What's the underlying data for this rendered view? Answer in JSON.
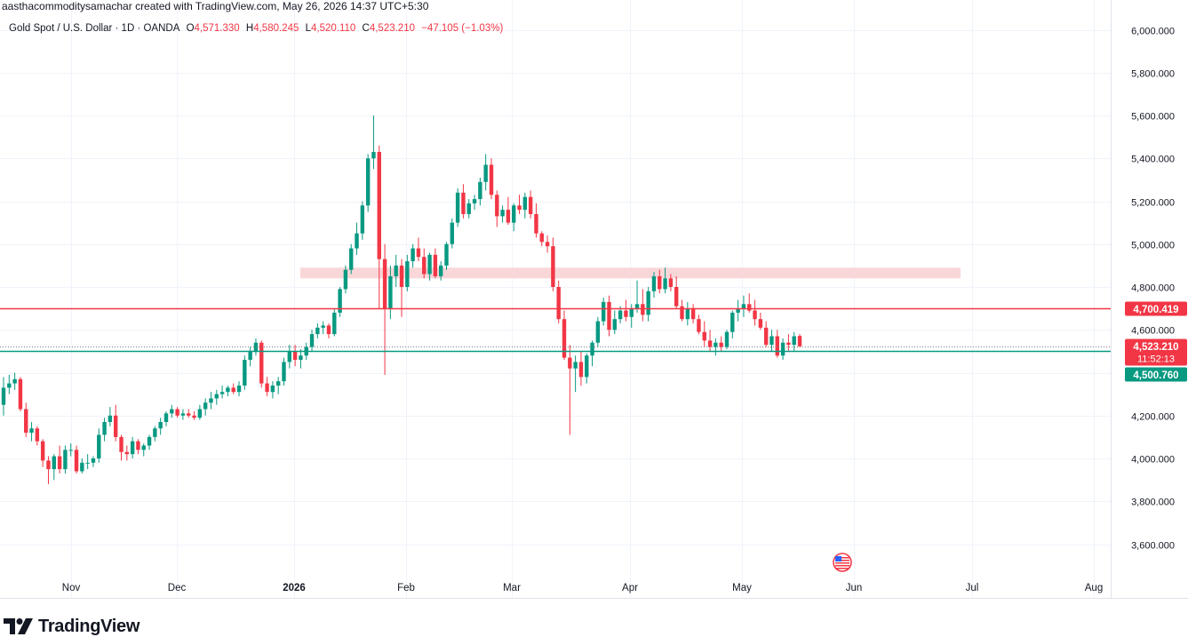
{
  "header": {
    "created_by": "aasthacommoditysamachar created with TradingView.com, May 26, 2026 14:37 UTC+5:30"
  },
  "legend": {
    "symbol": "Gold Spot / U.S. Dollar · 1D · OANDA",
    "open_label": "O",
    "open": "4,571.330",
    "high_label": "H",
    "high": "4,580.245",
    "low_label": "L",
    "low": "4,520.110",
    "close_label": "C",
    "close": "4,523.210",
    "change": "−47.105 (−1.03%)"
  },
  "chart_data": {
    "type": "candlestick",
    "y_ticks": [
      "6,000.000",
      "5,800.000",
      "5,600.000",
      "5,400.000",
      "5,200.000",
      "5,000.000",
      "4,800.000",
      "4,600.000",
      "4,400.000",
      "4,200.000",
      "4,000.000",
      "3,800.000",
      "3,600.000"
    ],
    "x_ticks": [
      "Nov",
      "Dec",
      "2026",
      "Feb",
      "Mar",
      "Apr",
      "May",
      "Jun",
      "Jul",
      "Aug"
    ],
    "ylim": [
      3500,
      6050
    ],
    "grid": true,
    "candles": [
      [
        4250,
        4380,
        4200,
        4330
      ],
      [
        4330,
        4390,
        4300,
        4350
      ],
      [
        4350,
        4400,
        4320,
        4370
      ],
      [
        4370,
        4380,
        4220,
        4230
      ],
      [
        4230,
        4260,
        4100,
        4120
      ],
      [
        4120,
        4170,
        4080,
        4140
      ],
      [
        4140,
        4150,
        4060,
        4080
      ],
      [
        4080,
        4090,
        3960,
        3990
      ],
      [
        3990,
        4010,
        3880,
        3950
      ],
      [
        3950,
        4020,
        3900,
        4010
      ],
      [
        4010,
        4060,
        3930,
        3950
      ],
      [
        3950,
        4060,
        3930,
        4040
      ],
      [
        4040,
        4070,
        4010,
        4040
      ],
      [
        4040,
        4060,
        3930,
        3940
      ],
      [
        3940,
        4000,
        3930,
        3980
      ],
      [
        3980,
        4020,
        3950,
        3980
      ],
      [
        3980,
        4010,
        3960,
        4000
      ],
      [
        4000,
        4140,
        3980,
        4110
      ],
      [
        4110,
        4190,
        4080,
        4170
      ],
      [
        4170,
        4240,
        4150,
        4200
      ],
      [
        4200,
        4250,
        4080,
        4100
      ],
      [
        4100,
        4110,
        3990,
        4030
      ],
      [
        4030,
        4060,
        3990,
        4020
      ],
      [
        4020,
        4100,
        4000,
        4080
      ],
      [
        4080,
        4090,
        4020,
        4040
      ],
      [
        4040,
        4070,
        4010,
        4060
      ],
      [
        4060,
        4110,
        4040,
        4100
      ],
      [
        4100,
        4150,
        4080,
        4140
      ],
      [
        4140,
        4190,
        4110,
        4170
      ],
      [
        4170,
        4220,
        4150,
        4210
      ],
      [
        4210,
        4250,
        4190,
        4230
      ],
      [
        4230,
        4240,
        4190,
        4200
      ],
      [
        4200,
        4230,
        4180,
        4210
      ],
      [
        4210,
        4230,
        4190,
        4200
      ],
      [
        4200,
        4220,
        4180,
        4190
      ],
      [
        4190,
        4250,
        4180,
        4230
      ],
      [
        4230,
        4280,
        4200,
        4260
      ],
      [
        4260,
        4310,
        4230,
        4280
      ],
      [
        4280,
        4320,
        4250,
        4300
      ],
      [
        4300,
        4340,
        4280,
        4310
      ],
      [
        4310,
        4340,
        4290,
        4330
      ],
      [
        4330,
        4350,
        4300,
        4310
      ],
      [
        4310,
        4360,
        4290,
        4340
      ],
      [
        4340,
        4480,
        4320,
        4460
      ],
      [
        4460,
        4520,
        4430,
        4500
      ],
      [
        4500,
        4560,
        4480,
        4540
      ],
      [
        4540,
        4550,
        4330,
        4350
      ],
      [
        4350,
        4380,
        4290,
        4310
      ],
      [
        4310,
        4360,
        4280,
        4340
      ],
      [
        4340,
        4380,
        4300,
        4360
      ],
      [
        4360,
        4470,
        4340,
        4450
      ],
      [
        4450,
        4530,
        4420,
        4500
      ],
      [
        4500,
        4530,
        4430,
        4460
      ],
      [
        4460,
        4510,
        4420,
        4480
      ],
      [
        4480,
        4540,
        4460,
        4520
      ],
      [
        4520,
        4600,
        4500,
        4580
      ],
      [
        4580,
        4630,
        4560,
        4610
      ],
      [
        4610,
        4640,
        4580,
        4620
      ],
      [
        4620,
        4630,
        4560,
        4580
      ],
      [
        4580,
        4700,
        4570,
        4680
      ],
      [
        4680,
        4800,
        4660,
        4790
      ],
      [
        4790,
        4900,
        4770,
        4880
      ],
      [
        4880,
        5000,
        4860,
        4980
      ],
      [
        4980,
        5100,
        4950,
        5050
      ],
      [
        5050,
        5200,
        5020,
        5180
      ],
      [
        5180,
        5420,
        5150,
        5400
      ],
      [
        5400,
        5600,
        5350,
        5430
      ],
      [
        5430,
        5460,
        4700,
        4930
      ],
      [
        4930,
        5000,
        4390,
        4700
      ],
      [
        4700,
        4900,
        4650,
        4850
      ],
      [
        4850,
        4950,
        4800,
        4900
      ],
      [
        4900,
        4930,
        4660,
        4800
      ],
      [
        4800,
        4950,
        4780,
        4920
      ],
      [
        4920,
        5000,
        4890,
        4980
      ],
      [
        4980,
        5030,
        4920,
        4940
      ],
      [
        4940,
        4980,
        4840,
        4860
      ],
      [
        4860,
        4960,
        4830,
        4950
      ],
      [
        4950,
        4980,
        4840,
        4850
      ],
      [
        4850,
        4920,
        4830,
        4900
      ],
      [
        4900,
        5010,
        4880,
        5000
      ],
      [
        5000,
        5120,
        4980,
        5100
      ],
      [
        5100,
        5260,
        5080,
        5240
      ],
      [
        5240,
        5280,
        5120,
        5140
      ],
      [
        5140,
        5210,
        5120,
        5190
      ],
      [
        5190,
        5230,
        5160,
        5210
      ],
      [
        5210,
        5310,
        5180,
        5290
      ],
      [
        5290,
        5420,
        5250,
        5370
      ],
      [
        5370,
        5400,
        5210,
        5230
      ],
      [
        5230,
        5250,
        5080,
        5130
      ],
      [
        5130,
        5180,
        5100,
        5160
      ],
      [
        5160,
        5220,
        5090,
        5100
      ],
      [
        5100,
        5190,
        5060,
        5180
      ],
      [
        5180,
        5230,
        5140,
        5160
      ],
      [
        5160,
        5240,
        5120,
        5220
      ],
      [
        5220,
        5250,
        5120,
        5140
      ],
      [
        5140,
        5190,
        5030,
        5050
      ],
      [
        5050,
        5060,
        4990,
        5010
      ],
      [
        5010,
        5040,
        4960,
        4990
      ],
      [
        4990,
        5030,
        4780,
        4800
      ],
      [
        4800,
        4830,
        4630,
        4650
      ],
      [
        4650,
        4690,
        4460,
        4470
      ],
      [
        4470,
        4530,
        4110,
        4420
      ],
      [
        4420,
        4480,
        4310,
        4450
      ],
      [
        4450,
        4500,
        4340,
        4380
      ],
      [
        4380,
        4490,
        4350,
        4480
      ],
      [
        4480,
        4550,
        4430,
        4540
      ],
      [
        4540,
        4660,
        4520,
        4640
      ],
      [
        4640,
        4750,
        4620,
        4730
      ],
      [
        4730,
        4760,
        4570,
        4600
      ],
      [
        4600,
        4690,
        4580,
        4650
      ],
      [
        4650,
        4710,
        4630,
        4690
      ],
      [
        4690,
        4740,
        4640,
        4660
      ],
      [
        4660,
        4720,
        4610,
        4700
      ],
      [
        4700,
        4830,
        4680,
        4720
      ],
      [
        4720,
        4790,
        4640,
        4670
      ],
      [
        4670,
        4800,
        4640,
        4780
      ],
      [
        4780,
        4870,
        4750,
        4850
      ],
      [
        4850,
        4880,
        4770,
        4790
      ],
      [
        4790,
        4890,
        4770,
        4840
      ],
      [
        4840,
        4860,
        4780,
        4800
      ],
      [
        4800,
        4850,
        4700,
        4710
      ],
      [
        4710,
        4740,
        4640,
        4650
      ],
      [
        4650,
        4730,
        4620,
        4700
      ],
      [
        4700,
        4720,
        4630,
        4650
      ],
      [
        4650,
        4670,
        4580,
        4590
      ],
      [
        4590,
        4640,
        4520,
        4550
      ],
      [
        4550,
        4600,
        4500,
        4520
      ],
      [
        4520,
        4560,
        4480,
        4540
      ],
      [
        4540,
        4570,
        4500,
        4520
      ],
      [
        4520,
        4600,
        4510,
        4590
      ],
      [
        4590,
        4690,
        4560,
        4680
      ],
      [
        4680,
        4740,
        4640,
        4700
      ],
      [
        4700,
        4760,
        4660,
        4720
      ],
      [
        4720,
        4770,
        4680,
        4690
      ],
      [
        4690,
        4740,
        4620,
        4650
      ],
      [
        4650,
        4680,
        4600,
        4610
      ],
      [
        4610,
        4640,
        4520,
        4530
      ],
      [
        4530,
        4600,
        4500,
        4570
      ],
      [
        4570,
        4600,
        4470,
        4480
      ],
      [
        4480,
        4560,
        4460,
        4540
      ],
      [
        4540,
        4580,
        4500,
        4530
      ],
      [
        4530,
        4590,
        4500,
        4570
      ],
      [
        4571.33,
        4580.245,
        4520.11,
        4523.21
      ]
    ],
    "lines": [
      {
        "label": "4,700.419",
        "value": 4700.419,
        "color": "#f23645"
      },
      {
        "label": "4,500.760",
        "value": 4500.76,
        "color": "#089981"
      }
    ],
    "zone": {
      "from": 4840,
      "to": 4890,
      "color": "#f9d7d9"
    },
    "last_price": {
      "label": "4,523.210",
      "countdown": "11:52:13",
      "value": 4523.21,
      "color": "#f23645"
    },
    "colors": {
      "up": "#089981",
      "down": "#f23645",
      "grid": "#f0f3fa"
    }
  },
  "footer": {
    "brand": "TradingView"
  }
}
